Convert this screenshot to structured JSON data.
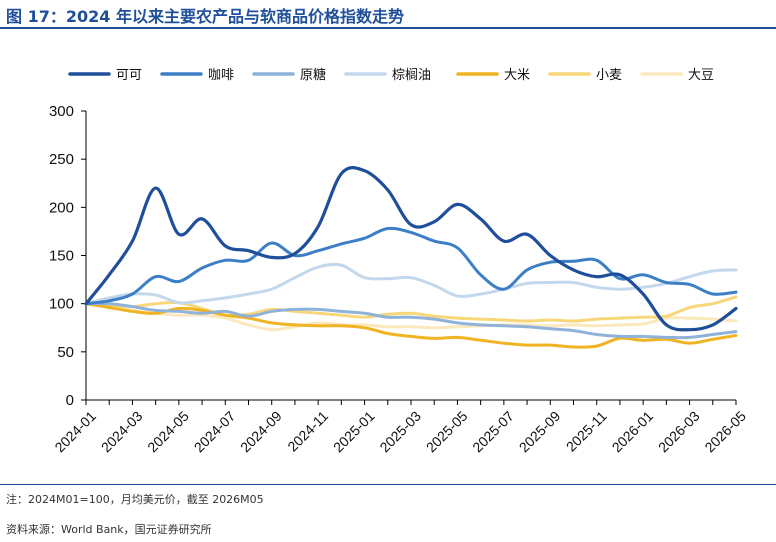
{
  "title": "图 17：2024 年以来主要农产品与软商品价格指数走势",
  "notes": {
    "note": "注：2024M01=100，月均美元价，截至 2026M05",
    "source": "资料来源：World Bank，国元证券研究所"
  },
  "chart_data": {
    "type": "line",
    "title": "",
    "xlabel": "",
    "ylabel": "",
    "ylim": [
      0,
      300
    ],
    "yticks": [
      0,
      50,
      100,
      150,
      200,
      250,
      300
    ],
    "x": [
      "2024-01",
      "2024-02",
      "2024-03",
      "2024-04",
      "2024-05",
      "2024-06",
      "2024-07",
      "2024-08",
      "2024-09",
      "2024-10",
      "2024-11",
      "2024-12",
      "2025-01",
      "2025-02",
      "2025-03",
      "2025-04",
      "2025-05",
      "2025-06",
      "2025-07",
      "2025-08",
      "2025-09",
      "2025-10",
      "2025-11",
      "2025-12",
      "2026-01",
      "2026-02",
      "2026-03",
      "2026-04",
      "2026-05"
    ],
    "xtick_labels": [
      "2024-01",
      "2024-03",
      "2024-05",
      "2024-07",
      "2024-09",
      "2024-11",
      "2025-01",
      "2025-03",
      "2025-05",
      "2025-07",
      "2025-09",
      "2025-11",
      "2026-01",
      "2026-03",
      "2026-05"
    ],
    "grid": false,
    "legend_position": "top",
    "series": [
      {
        "name": "可可",
        "color": "#1f4e9a",
        "width": 3.2,
        "values": [
          100,
          130,
          165,
          220,
          172,
          188,
          160,
          155,
          148,
          152,
          180,
          235,
          238,
          218,
          182,
          185,
          203,
          188,
          165,
          172,
          150,
          135,
          128,
          130,
          110,
          78,
          73,
          78,
          95
        ]
      },
      {
        "name": "咖啡",
        "color": "#3d7fc7",
        "width": 3,
        "values": [
          100,
          103,
          110,
          128,
          123,
          137,
          145,
          145,
          163,
          150,
          155,
          162,
          168,
          178,
          174,
          165,
          158,
          130,
          115,
          135,
          143,
          144,
          145,
          126,
          130,
          122,
          120,
          110,
          112
        ]
      },
      {
        "name": "原糖",
        "color": "#8fb2d9",
        "width": 3,
        "values": [
          100,
          100,
          97,
          93,
          92,
          90,
          92,
          87,
          92,
          94,
          94,
          92,
          90,
          86,
          86,
          84,
          80,
          78,
          77,
          76,
          74,
          72,
          68,
          66,
          66,
          65,
          65,
          68,
          71
        ]
      },
      {
        "name": "棕榈油",
        "color": "#c3d8ec",
        "width": 3,
        "values": [
          100,
          106,
          110,
          109,
          101,
          103,
          106,
          110,
          115,
          127,
          138,
          140,
          127,
          126,
          127,
          119,
          108,
          110,
          115,
          121,
          122,
          122,
          117,
          115,
          117,
          121,
          128,
          134,
          135
        ]
      },
      {
        "name": "大米",
        "color": "#f0b323",
        "width": 3,
        "values": [
          100,
          96,
          92,
          90,
          95,
          93,
          88,
          85,
          80,
          78,
          77,
          77,
          75,
          69,
          66,
          64,
          65,
          62,
          59,
          57,
          57,
          55,
          56,
          64,
          62,
          63,
          59,
          63,
          67
        ]
      },
      {
        "name": "小麦",
        "color": "#f7d77a",
        "width": 3,
        "values": [
          100,
          98,
          97,
          100,
          101,
          95,
          88,
          89,
          94,
          92,
          90,
          88,
          86,
          89,
          90,
          87,
          85,
          84,
          83,
          82,
          83,
          82,
          84,
          85,
          86,
          87,
          96,
          100,
          107
        ]
      },
      {
        "name": "大豆",
        "color": "#fbe8bd",
        "width": 3,
        "values": [
          100,
          96,
          93,
          90,
          88,
          88,
          85,
          78,
          73,
          76,
          80,
          78,
          78,
          76,
          76,
          75,
          76,
          77,
          78,
          78,
          77,
          78,
          77,
          78,
          79,
          85,
          85,
          84,
          82
        ]
      }
    ]
  }
}
